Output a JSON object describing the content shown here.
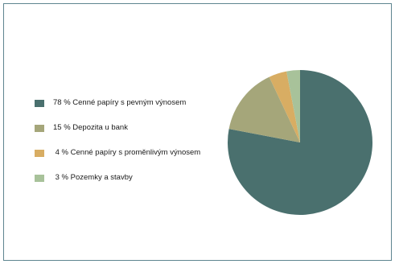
{
  "chart_data": {
    "type": "pie",
    "slices": [
      {
        "label": "78 % Cenné papíry s pevným výnosem",
        "value": 78,
        "color": "#4a706e"
      },
      {
        "label": "15 % Depozita u bank",
        "value": 15,
        "color": "#a5a67a"
      },
      {
        "label": " 4 % Cenné papíry s proměnlivým výnosem",
        "value": 4,
        "color": "#d8ad63"
      },
      {
        "label": " 3 % Pozemky a stavby",
        "value": 3,
        "color": "#a8c29a"
      }
    ],
    "legend_position": "left"
  }
}
